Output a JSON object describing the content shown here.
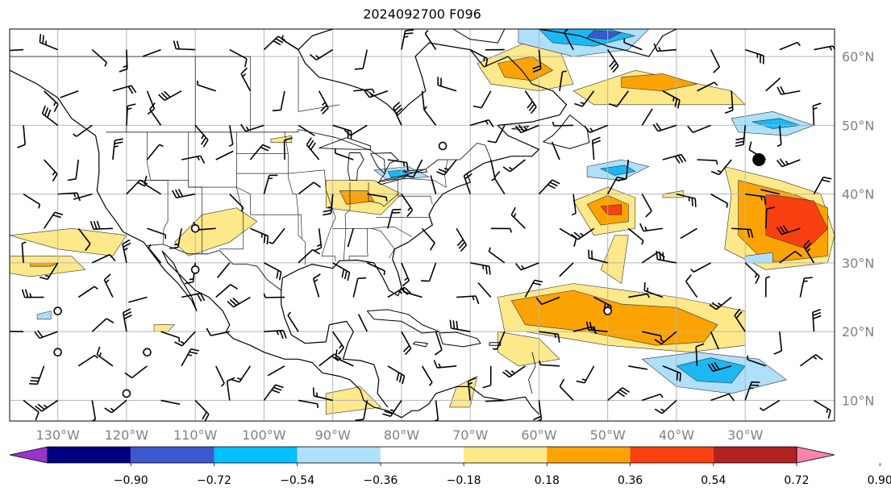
{
  "title": "2024092700 F096",
  "map": {
    "extent": {
      "lon_min": -137,
      "lon_max": -17,
      "lat_min": 7,
      "lat_max": 64
    },
    "lon_gridlines": [
      -130,
      -120,
      -110,
      -100,
      -90,
      -80,
      -70,
      -60,
      -50,
      -40,
      -30
    ],
    "lat_gridlines": [
      10,
      20,
      30,
      40,
      50,
      60
    ],
    "x_tick_labels": [
      "130°W",
      "120°W",
      "110°W",
      "100°W",
      "90°W",
      "80°W",
      "70°W",
      "60°W",
      "50°W",
      "40°W",
      "30°W"
    ],
    "y_tick_labels": [
      "10°N",
      "20°N",
      "30°N",
      "40°N",
      "50°N",
      "60°N"
    ],
    "field_colors": {
      "pos_low": "#fde88a",
      "pos_mid": "#fca304",
      "pos_high": "#f94010",
      "neg_low": "#aee0fa",
      "neg_mid": "#1cb8f5",
      "neg_high": "#3d57cf"
    },
    "markers": [
      {
        "lon": -28,
        "lat": 45,
        "type": "filled-circle"
      },
      {
        "lon": -74,
        "lat": 47,
        "type": "open-circle"
      },
      {
        "lon": -110,
        "lat": 35,
        "type": "open-circle"
      },
      {
        "lon": -110,
        "lat": 29,
        "type": "open-circle"
      },
      {
        "lon": -130,
        "lat": 23,
        "type": "open-circle"
      },
      {
        "lon": -130,
        "lat": 17,
        "type": "open-circle"
      },
      {
        "lon": -117,
        "lat": 17,
        "type": "open-circle"
      },
      {
        "lon": -120,
        "lat": 11,
        "type": "open-circle"
      },
      {
        "lon": -50,
        "lat": 23,
        "type": "open-circle"
      }
    ]
  },
  "colorbar": {
    "colors": [
      "#9933cc",
      "#000080",
      "#3d57cf",
      "#00bfff",
      "#b0e0fa",
      "#ffffff",
      "#fde88a",
      "#fca304",
      "#f94010",
      "#b22222",
      "#ff82ab"
    ],
    "tick_labels": [
      "−0.90",
      "−0.72",
      "−0.54",
      "−0.36",
      "−0.18",
      "0.18",
      "0.36",
      "0.54",
      "0.72",
      "0.90"
    ]
  }
}
